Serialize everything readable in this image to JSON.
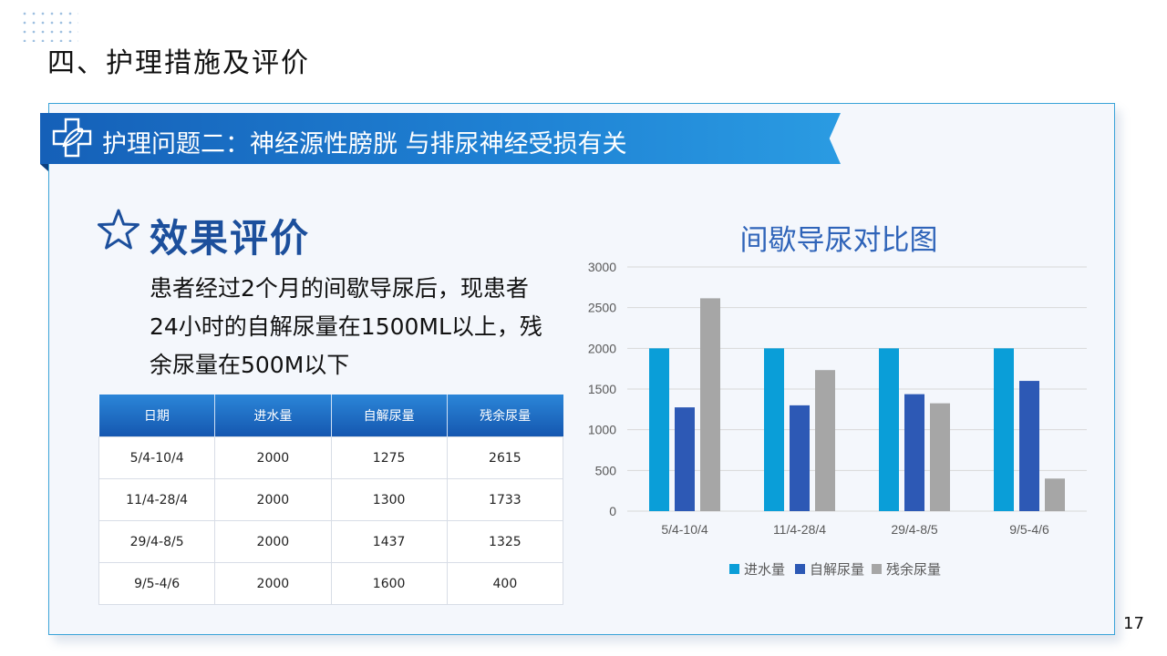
{
  "slide": {
    "title": "四、护理措施及评价",
    "page_number": "17"
  },
  "banner": {
    "text": "护理问题二：神经源性膀胱 与排尿神经受损有关",
    "icon": "medical-cross-icon"
  },
  "section": {
    "icon": "star-icon",
    "title": "效果评价",
    "description": "患者经过2个月的间歇导尿后，现患者24小时的自解尿量在1500ML以上，残余尿量在500M以下"
  },
  "table": {
    "headers": [
      "日期",
      "进水量",
      "自解尿量",
      "残余尿量"
    ],
    "rows": [
      [
        "5/4-10/4",
        "2000",
        "1275",
        "2615"
      ],
      [
        "11/4-28/4",
        "2000",
        "1300",
        "1733"
      ],
      [
        "29/4-8/5",
        "2000",
        "1437",
        "1325"
      ],
      [
        "9/5-4/6",
        "2000",
        "1600",
        "400"
      ]
    ]
  },
  "colors": {
    "accent": "#1f6fc9",
    "series": [
      "#0a9ed8",
      "#2d59b5",
      "#a6a6a6"
    ]
  },
  "chart_data": {
    "type": "bar",
    "title": "间歇导尿对比图",
    "categories": [
      "5/4-10/4",
      "11/4-28/4",
      "29/4-8/5",
      "9/5-4/6"
    ],
    "series": [
      {
        "name": "进水量",
        "values": [
          2000,
          2000,
          2000,
          2000
        ]
      },
      {
        "name": "自解尿量",
        "values": [
          1275,
          1300,
          1437,
          1600
        ]
      },
      {
        "name": "残余尿量",
        "values": [
          2615,
          1733,
          1325,
          400
        ]
      }
    ],
    "ylim": [
      0,
      3000
    ],
    "yticks": [
      0,
      500,
      1000,
      1500,
      2000,
      2500,
      3000
    ],
    "grid": true,
    "legend": "bottom"
  }
}
